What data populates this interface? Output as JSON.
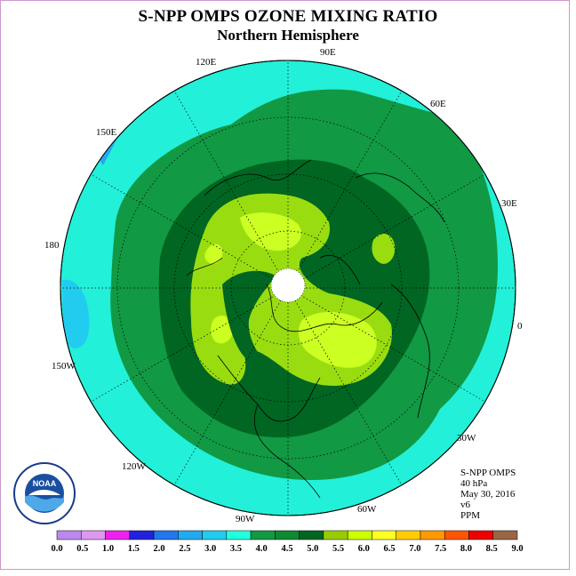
{
  "title": "S-NPP OMPS OZONE MIXING RATIO",
  "subtitle": "Northern Hemisphere",
  "longitude_labels": [
    "90E",
    "60E",
    "30E",
    "0",
    "30W",
    "60W",
    "90W",
    "120W",
    "150W",
    "180",
    "150E",
    "120E"
  ],
  "info": {
    "product": "S-NPP OMPS",
    "level": "40 hPa",
    "date": "May 30, 2016",
    "version": "v6",
    "units": "PPM"
  },
  "logo": {
    "text": "NOAA",
    "ring_text": "NATIONAL OCEANIC AND ATMOSPHERIC ADMINISTRATION U.S. DEPARTMENT OF COMMERCE"
  },
  "colorbar": {
    "labels": [
      "0.0",
      "0.5",
      "1.0",
      "1.5",
      "2.0",
      "2.5",
      "3.0",
      "3.5",
      "4.0",
      "4.5",
      "5.0",
      "5.5",
      "6.0",
      "6.5",
      "7.0",
      "7.5",
      "8.0",
      "8.5",
      "9.0"
    ],
    "colors": [
      "#bb88ee",
      "#dd99ee",
      "#ee22ee",
      "#2222dd",
      "#2277ee",
      "#22aaee",
      "#22ccee",
      "#22ffdd",
      "#119944",
      "#118833",
      "#006622",
      "#99cc00",
      "#ccff00",
      "#ffff22",
      "#ffcc00",
      "#ff9900",
      "#ff5500",
      "#ee0000",
      "#996644"
    ]
  },
  "map_colors": {
    "outer": "#22f0d8",
    "ring1": "#119944",
    "ring2": "#006622",
    "core1": "#99dd11",
    "core2": "#ccff22",
    "low": "#22ccee",
    "pole": "#ffffff"
  }
}
